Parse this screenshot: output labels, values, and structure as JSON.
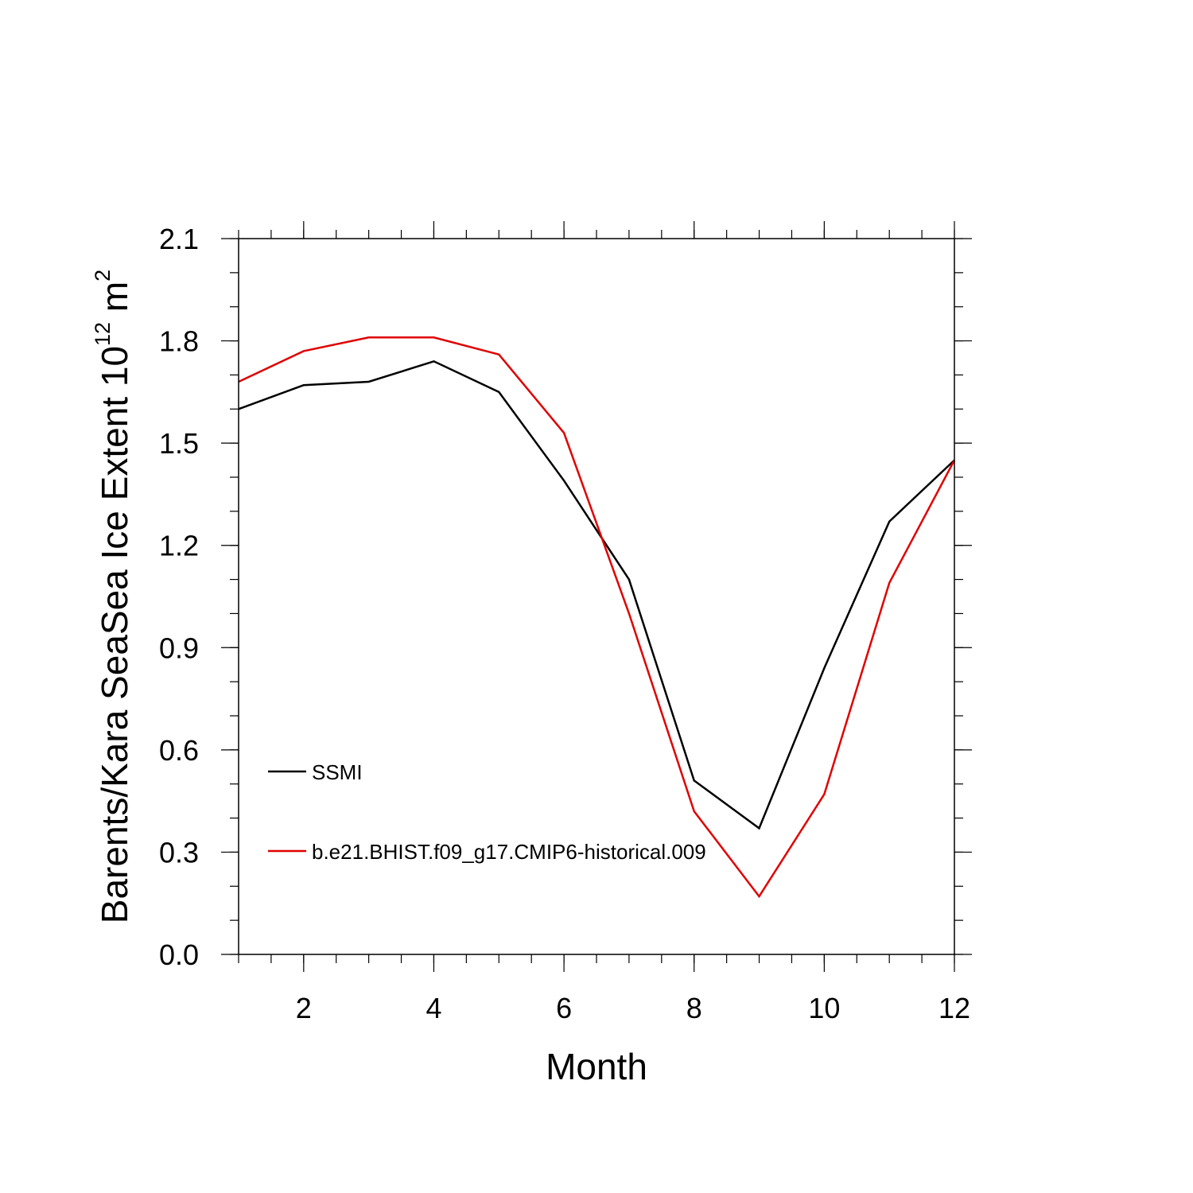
{
  "chart_data": {
    "type": "line",
    "title": "",
    "xlabel": "Month",
    "ylabel": {
      "prefix": "Barents/Kara SeaSea Ice Extent 10",
      "exponent": "12",
      "middle": " m",
      "unit_exponent": "2"
    },
    "xlim": [
      1,
      12
    ],
    "ylim": [
      0.0,
      2.1
    ],
    "x_major_ticks": [
      2,
      4,
      6,
      8,
      10,
      12
    ],
    "x_tick_labels": [
      "2",
      "4",
      "6",
      "8",
      "10",
      "12"
    ],
    "y_major_ticks": [
      0.0,
      0.3,
      0.6,
      0.9,
      1.2,
      1.5,
      1.8,
      2.1
    ],
    "y_tick_labels": [
      "0.0",
      "0.3",
      "0.6",
      "0.9",
      "1.2",
      "1.5",
      "1.8",
      "2.1"
    ],
    "grid": false,
    "legend_position": "lower-left",
    "x": [
      1,
      2,
      3,
      4,
      5,
      6,
      7,
      8,
      9,
      10,
      11,
      12
    ],
    "series": [
      {
        "name": "SSMI",
        "color": "#000000",
        "values": [
          1.6,
          1.67,
          1.68,
          1.74,
          1.65,
          1.39,
          1.1,
          0.51,
          0.37,
          0.84,
          1.27,
          1.45
        ]
      },
      {
        "name": "b.e21.BHIST.f09_g17.CMIP6-historical.009",
        "color": "#e00000",
        "values": [
          1.68,
          1.77,
          1.81,
          1.81,
          1.76,
          1.53,
          1.0,
          0.42,
          0.17,
          0.47,
          1.09,
          1.45
        ]
      }
    ]
  }
}
